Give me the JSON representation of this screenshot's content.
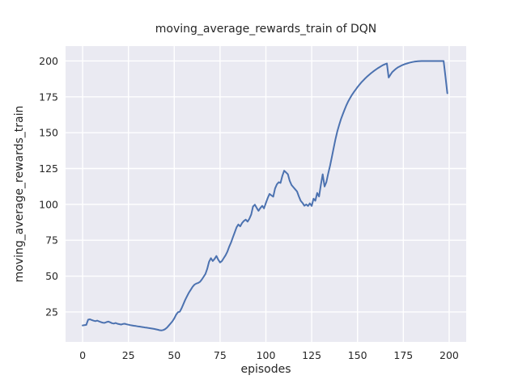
{
  "chart_data": {
    "type": "line",
    "title": "moving_average_rewards_train of DQN",
    "xlabel": "episodes",
    "ylabel": "moving_average_rewards_train",
    "x_ticks": [
      0,
      25,
      50,
      75,
      100,
      125,
      150,
      175,
      200
    ],
    "y_ticks": [
      25,
      50,
      75,
      100,
      125,
      150,
      175,
      200
    ],
    "xlim": [
      -9.3,
      209.3
    ],
    "ylim": [
      4.1,
      210.4
    ],
    "grid": true,
    "legend_position": "none",
    "colors": {
      "line": "#4c72b0",
      "plot_background": "#eaeaf2",
      "gridline": "#ffffff",
      "figure_background": "#ffffff",
      "text": "#262626"
    },
    "series": [
      {
        "points": [
          [
            0,
            15.6
          ],
          [
            1,
            15.8
          ],
          [
            2,
            16.0
          ],
          [
            3,
            19.6
          ],
          [
            4,
            19.9
          ],
          [
            5,
            19.4
          ],
          [
            6,
            18.9
          ],
          [
            7,
            18.6
          ],
          [
            8,
            19.0
          ],
          [
            9,
            18.4
          ],
          [
            10,
            17.9
          ],
          [
            11,
            17.5
          ],
          [
            12,
            17.4
          ],
          [
            13,
            17.9
          ],
          [
            14,
            18.3
          ],
          [
            15,
            17.8
          ],
          [
            16,
            17.2
          ],
          [
            17,
            16.9
          ],
          [
            18,
            17.3
          ],
          [
            19,
            16.8
          ],
          [
            20,
            16.5
          ],
          [
            21,
            16.2
          ],
          [
            22,
            16.6
          ],
          [
            23,
            16.8
          ],
          [
            24,
            16.4
          ],
          [
            25,
            16.1
          ],
          [
            26,
            15.8
          ],
          [
            27,
            15.6
          ],
          [
            28,
            15.4
          ],
          [
            29,
            15.2
          ],
          [
            30,
            15.0
          ],
          [
            31,
            14.8
          ],
          [
            32,
            14.6
          ],
          [
            33,
            14.4
          ],
          [
            34,
            14.2
          ],
          [
            35,
            14.0
          ],
          [
            36,
            13.8
          ],
          [
            37,
            13.6
          ],
          [
            38,
            13.4
          ],
          [
            39,
            13.2
          ],
          [
            40,
            12.9
          ],
          [
            41,
            12.6
          ],
          [
            42,
            12.3
          ],
          [
            43,
            12.1
          ],
          [
            44,
            12.4
          ],
          [
            45,
            13.0
          ],
          [
            46,
            14.0
          ],
          [
            47,
            15.5
          ],
          [
            48,
            17.0
          ],
          [
            49,
            18.5
          ],
          [
            50,
            20.5
          ],
          [
            51,
            23.0
          ],
          [
            52,
            24.8
          ],
          [
            53,
            25.2
          ],
          [
            54,
            27.5
          ],
          [
            55,
            30.5
          ],
          [
            56,
            33.5
          ],
          [
            57,
            36.0
          ],
          [
            58,
            38.5
          ],
          [
            59,
            40.5
          ],
          [
            60,
            42.5
          ],
          [
            61,
            44.0
          ],
          [
            62,
            44.8
          ],
          [
            63,
            45.2
          ],
          [
            64,
            46.0
          ],
          [
            65,
            47.5
          ],
          [
            66,
            49.5
          ],
          [
            67,
            51.5
          ],
          [
            68,
            55.0
          ],
          [
            69,
            60.0
          ],
          [
            70,
            62.5
          ],
          [
            71,
            60.5
          ],
          [
            72,
            62.0
          ],
          [
            73,
            64.0
          ],
          [
            74,
            61.5
          ],
          [
            75,
            59.5
          ],
          [
            76,
            60.5
          ],
          [
            77,
            62.5
          ],
          [
            78,
            64.5
          ],
          [
            79,
            67.0
          ],
          [
            80,
            70.5
          ],
          [
            81,
            73.5
          ],
          [
            82,
            77.0
          ],
          [
            83,
            80.5
          ],
          [
            84,
            84.0
          ],
          [
            85,
            86.0
          ],
          [
            86,
            84.7
          ],
          [
            87,
            87.0
          ],
          [
            88,
            88.5
          ],
          [
            89,
            89.4
          ],
          [
            90,
            88.0
          ],
          [
            91,
            90.0
          ],
          [
            92,
            93.0
          ],
          [
            93,
            98.5
          ],
          [
            94,
            99.8
          ],
          [
            95,
            97.5
          ],
          [
            96,
            95.5
          ],
          [
            97,
            97.5
          ],
          [
            98,
            99.0
          ],
          [
            99,
            97.2
          ],
          [
            100,
            101.0
          ],
          [
            101,
            104.5
          ],
          [
            102,
            107.3
          ],
          [
            103,
            106.3
          ],
          [
            104,
            105.4
          ],
          [
            105,
            111.0
          ],
          [
            106,
            114.0
          ],
          [
            107,
            115.5
          ],
          [
            108,
            115.0
          ],
          [
            109,
            120.0
          ],
          [
            110,
            123.5
          ],
          [
            111,
            122.3
          ],
          [
            112,
            121.0
          ],
          [
            113,
            116.5
          ],
          [
            114,
            113.5
          ],
          [
            115,
            112.0
          ],
          [
            116,
            110.5
          ],
          [
            117,
            109.0
          ],
          [
            118,
            105.5
          ],
          [
            119,
            102.5
          ],
          [
            120,
            101.0
          ],
          [
            121,
            99.0
          ],
          [
            122,
            100.0
          ],
          [
            123,
            98.9
          ],
          [
            124,
            100.7
          ],
          [
            125,
            98.9
          ],
          [
            126,
            104.0
          ],
          [
            127,
            102.5
          ],
          [
            128,
            108.0
          ],
          [
            129,
            105.5
          ],
          [
            130,
            113.5
          ],
          [
            131,
            121.0
          ],
          [
            132,
            112.5
          ],
          [
            133,
            115.5
          ],
          [
            134,
            121.5
          ],
          [
            135,
            127.0
          ],
          [
            136,
            133.0
          ],
          [
            137,
            139.5
          ],
          [
            138,
            145.5
          ],
          [
            139,
            151.0
          ],
          [
            140,
            155.5
          ],
          [
            141,
            159.5
          ],
          [
            142,
            163.0
          ],
          [
            143,
            166.3
          ],
          [
            144,
            169.3
          ],
          [
            145,
            172.0
          ],
          [
            146,
            174.3
          ],
          [
            147,
            176.4
          ],
          [
            148,
            178.3
          ],
          [
            149,
            180.1
          ],
          [
            150,
            181.8
          ],
          [
            151,
            183.4
          ],
          [
            152,
            184.9
          ],
          [
            153,
            186.3
          ],
          [
            154,
            187.6
          ],
          [
            155,
            188.8
          ],
          [
            156,
            190.0
          ],
          [
            157,
            191.1
          ],
          [
            158,
            192.1
          ],
          [
            159,
            193.1
          ],
          [
            160,
            194.0
          ],
          [
            161,
            194.9
          ],
          [
            162,
            195.7
          ],
          [
            163,
            196.5
          ],
          [
            164,
            197.2
          ],
          [
            165,
            197.8
          ],
          [
            166,
            198.3
          ],
          [
            167,
            188.5
          ],
          [
            168,
            190.5
          ],
          [
            169,
            192.3
          ],
          [
            170,
            193.5
          ],
          [
            171,
            194.6
          ],
          [
            172,
            195.5
          ],
          [
            173,
            196.2
          ],
          [
            174,
            196.9
          ],
          [
            175,
            197.4
          ],
          [
            176,
            197.9
          ],
          [
            177,
            198.3
          ],
          [
            178,
            198.7
          ],
          [
            179,
            199.0
          ],
          [
            180,
            199.3
          ],
          [
            181,
            199.5
          ],
          [
            182,
            199.7
          ],
          [
            183,
            199.8
          ],
          [
            184,
            199.9
          ],
          [
            185,
            200.0
          ],
          [
            186,
            200.0
          ],
          [
            187,
            200.0
          ],
          [
            188,
            200.0
          ],
          [
            189,
            200.0
          ],
          [
            190,
            200.0
          ],
          [
            191,
            200.0
          ],
          [
            192,
            200.0
          ],
          [
            193,
            200.0
          ],
          [
            194,
            200.0
          ],
          [
            195,
            200.0
          ],
          [
            196,
            200.0
          ],
          [
            197,
            200.0
          ],
          [
            198,
            189.0
          ],
          [
            199,
            177.5
          ]
        ]
      }
    ]
  }
}
